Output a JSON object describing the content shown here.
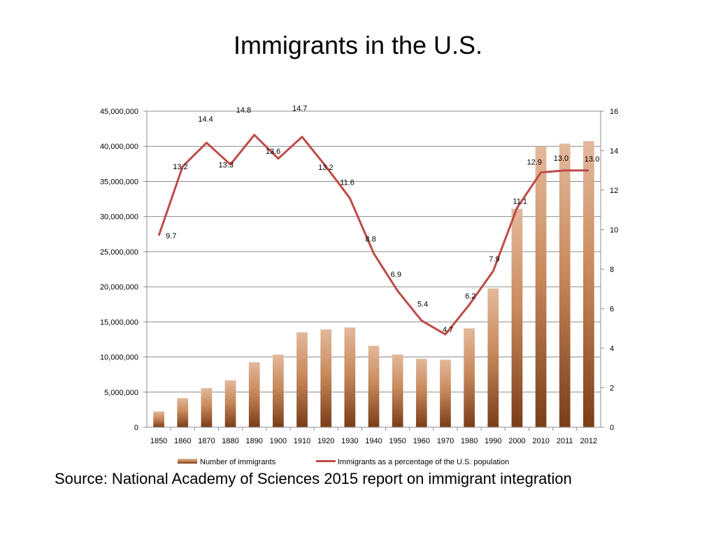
{
  "slide": {
    "title": "Immigrants in the U.S.",
    "source": "Source:  National Academy of Sciences 2015 report on immigrant integration"
  },
  "colors": {
    "bar_top": "#e3b99c",
    "bar_bottom": "#7a3d18",
    "line": "#be4b48",
    "grid": "#8c8c8c",
    "axis": "#8c8c8c"
  },
  "chart_data": {
    "type": "bar+line",
    "title": "Immigrants in the U.S.",
    "categories": [
      "1850",
      "1860",
      "1870",
      "1880",
      "1890",
      "1900",
      "1910",
      "1920",
      "1930",
      "1940",
      "1950",
      "1960",
      "1970",
      "1980",
      "1990",
      "2000",
      "2010",
      "2011",
      "2012"
    ],
    "series": [
      {
        "name": "Number of immigrants",
        "type": "bar",
        "axis": "left",
        "values": [
          2244602,
          4138697,
          5567229,
          6679943,
          9249547,
          10341276,
          13515886,
          13920692,
          14204149,
          11594896,
          10347395,
          9738091,
          9619302,
          14079906,
          19767316,
          31107889,
          39955854,
          40377860,
          40738224
        ]
      },
      {
        "name": "Immigrants as a percentage of the U.S. population",
        "type": "line",
        "axis": "right",
        "values": [
          9.7,
          13.2,
          14.4,
          13.3,
          14.8,
          13.6,
          14.7,
          13.2,
          11.6,
          8.8,
          6.9,
          5.4,
          4.7,
          6.2,
          7.9,
          11.1,
          12.9,
          13.0,
          13.0
        ],
        "labels": [
          "9.7",
          "13.2",
          "14.4",
          "13.3",
          "14.8",
          "13.6",
          "14.7",
          "13.2",
          "11.6",
          "8.8",
          "6.9",
          "5.4",
          "4.7",
          "6.2",
          "7.9",
          "11.1",
          "12.9",
          "13.0",
          "13.0"
        ]
      }
    ],
    "left_axis": {
      "min": 0,
      "max": 45000000,
      "step": 5000000,
      "tick_labels": [
        "0",
        "5,000,000",
        "10,000,000",
        "15,000,000",
        "20,000,000",
        "25,000,000",
        "30,000,000",
        "35,000,000",
        "40,000,000",
        "45,000,000"
      ]
    },
    "right_axis": {
      "min": 0,
      "max": 16,
      "step": 2,
      "tick_labels": [
        "0",
        "2",
        "4",
        "6",
        "8",
        "10",
        "12",
        "14",
        "16"
      ]
    },
    "legend": {
      "placement": "bottom",
      "entries": [
        "Number of immigrants",
        "Immigrants as a percentage of the U.S. population"
      ]
    },
    "grid": true
  }
}
